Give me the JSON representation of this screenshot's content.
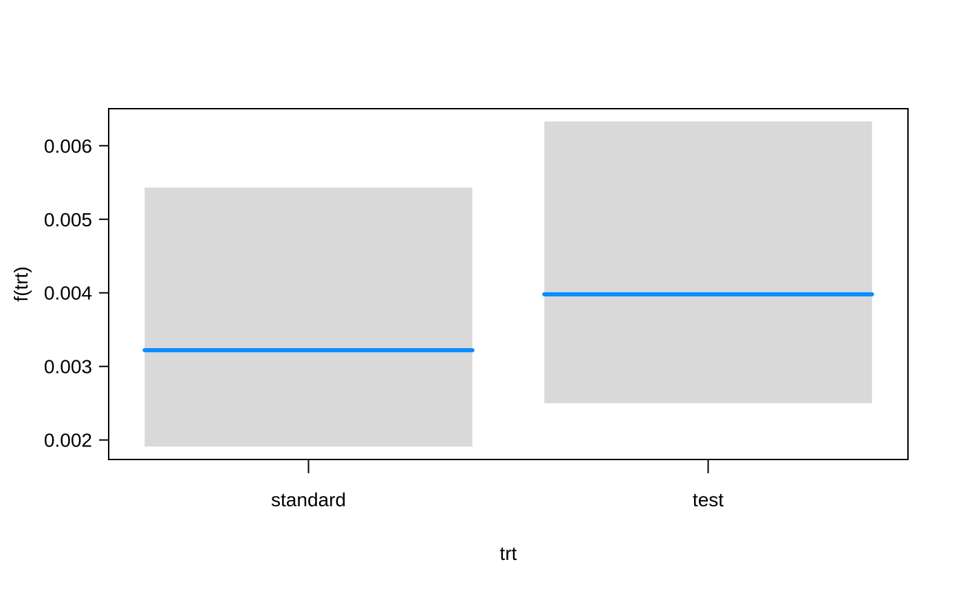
{
  "chart_data": {
    "type": "bar",
    "categories": [
      "standard",
      "test"
    ],
    "estimates": [
      0.00322,
      0.00398
    ],
    "ci_lower": [
      0.00191,
      0.0025
    ],
    "ci_upper": [
      0.00543,
      0.00633
    ],
    "xlabel": "trt",
    "ylabel": "f(trt)",
    "yticks": [
      0.002,
      0.003,
      0.004,
      0.005,
      0.006
    ],
    "ytick_labels": [
      "0.002",
      "0.003",
      "0.004",
      "0.005",
      "0.006"
    ],
    "ylim": [
      0.001735,
      0.006503
    ],
    "grid": false,
    "legend": false,
    "colors": {
      "band": "#d9d9d9",
      "line": "#0a8cff",
      "axis": "#000000"
    }
  }
}
